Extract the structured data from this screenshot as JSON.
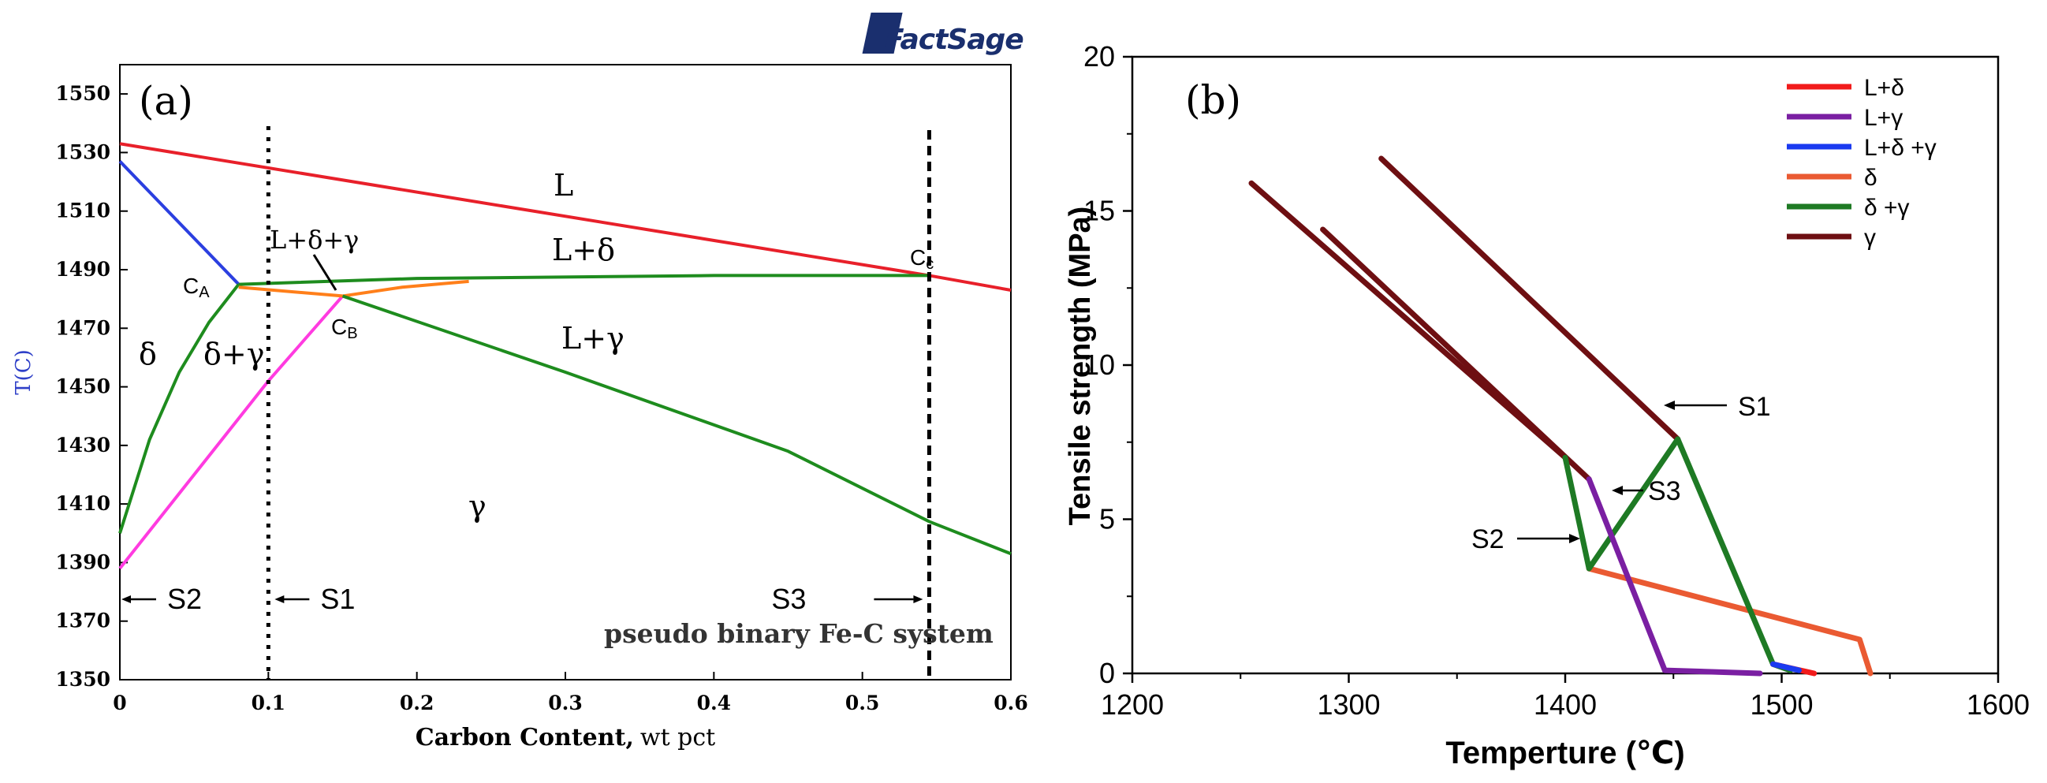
{
  "chart_data": [
    {
      "type": "line",
      "panel_label": "(a)",
      "title": "",
      "xlabel_bold": "Carbon Content,",
      "xlabel_rest": "wt pct",
      "ylabel": "T(C)",
      "xlim": [
        0,
        0.6
      ],
      "ylim": [
        1350,
        1560
      ],
      "xticks": [
        "0",
        "0.1",
        "0.2",
        "0.3",
        "0.4",
        "0.5",
        "0.6"
      ],
      "yticks": [
        "1350",
        "1370",
        "1390",
        "1410",
        "1430",
        "1450",
        "1470",
        "1490",
        "1510",
        "1530",
        "1550"
      ],
      "logo": "FactSage",
      "system_label": "pseudo binary Fe-C system",
      "phase_labels": [
        "L",
        "L+δ",
        "L+δ+γ",
        "L+γ",
        "δ",
        "δ+γ",
        "γ"
      ],
      "points": {
        "CA": "CA",
        "CB": "CB",
        "CC": "Cc"
      },
      "markers": [
        {
          "name": "S2",
          "x": 0.0
        },
        {
          "name": "S1",
          "x": 0.1
        },
        {
          "name": "S3",
          "x": 0.545
        }
      ],
      "series": [
        {
          "name": "liquidus L / L+δ",
          "color": "#e8202a",
          "x": [
            0.0,
            0.545,
            0.6
          ],
          "y": [
            1533,
            1488,
            1483
          ]
        },
        {
          "name": "δ / L+δ",
          "color": "#2b3fe0",
          "x": [
            0.0,
            0.08
          ],
          "y": [
            1527,
            1485
          ]
        },
        {
          "name": "L+δ / L+δ+γ / L+γ",
          "color": "#1e8c1e",
          "x": [
            0.08,
            0.2,
            0.4,
            0.545
          ],
          "y": [
            1485,
            1487,
            1488,
            1488
          ]
        },
        {
          "name": "δ / δ+γ",
          "color": "#1e8c1e",
          "x": [
            0.0,
            0.02,
            0.04,
            0.06,
            0.08
          ],
          "y": [
            1400,
            1432,
            1455,
            1472,
            1485
          ]
        },
        {
          "name": "δ+γ / γ",
          "color": "#ff3be0",
          "x": [
            0.0,
            0.05,
            0.1,
            0.15
          ],
          "y": [
            1388,
            1420,
            1452,
            1481
          ]
        },
        {
          "name": "L+δ+γ lower",
          "color": "#ff7f1a",
          "x": [
            0.08,
            0.15,
            0.19,
            0.235
          ],
          "y": [
            1484,
            1481,
            1484,
            1486
          ]
        },
        {
          "name": "γ / L+γ",
          "color": "#1e8c1e",
          "x": [
            0.15,
            0.3,
            0.45,
            0.545,
            0.6
          ],
          "y": [
            1481,
            1455,
            1428,
            1404,
            1393
          ]
        }
      ]
    },
    {
      "type": "line",
      "panel_label": "(b)",
      "title": "",
      "xlabel": "Temperture (℃)",
      "ylabel": "Tensile strength (MPa)",
      "xlim": [
        1200,
        1600
      ],
      "ylim": [
        0,
        20
      ],
      "xticks": [
        "1200",
        "1300",
        "1400",
        "1500",
        "1600"
      ],
      "yticks": [
        "0",
        "5",
        "10",
        "15",
        "20"
      ],
      "annotations": [
        "S1",
        "S2",
        "S3"
      ],
      "series": [
        {
          "name": "L+δ",
          "legend": "L+δ",
          "color": "#f11b1b",
          "x": [
            1496,
            1515
          ],
          "y": [
            0.3,
            0.0
          ]
        },
        {
          "name": "L+γ",
          "legend": "L+γ",
          "color": "#7a1fa2",
          "x": [
            1411,
            1446,
            1490
          ],
          "y": [
            6.3,
            0.1,
            0.0
          ]
        },
        {
          "name": "L+δ+γ",
          "legend": "L+δ  +γ",
          "color": "#1a3af0",
          "x": [
            1496,
            1508
          ],
          "y": [
            0.3,
            0.1
          ]
        },
        {
          "name": "δ",
          "legend": "δ",
          "color": "#ea5a32",
          "x": [
            1411,
            1536,
            1541
          ],
          "y": [
            3.4,
            1.1,
            0.0
          ]
        },
        {
          "name": "δ+γ",
          "legend": "δ  +γ",
          "color": "#1e7a24",
          "x": [
            1400,
            1411,
            1452,
            1496,
            1504
          ],
          "y": [
            7.0,
            3.4,
            7.6,
            0.3,
            0.1
          ]
        },
        {
          "name": "γ S1",
          "legend": "γ",
          "color": "#6e0f12",
          "x": [
            1315,
            1452
          ],
          "y": [
            16.7,
            7.6
          ]
        },
        {
          "name": "γ S2",
          "color": "#6e0f12",
          "x": [
            1255,
            1400
          ],
          "y": [
            15.9,
            7.0
          ]
        },
        {
          "name": "γ S3",
          "color": "#6e0f12",
          "x": [
            1288,
            1411
          ],
          "y": [
            14.4,
            6.3
          ]
        }
      ]
    }
  ]
}
